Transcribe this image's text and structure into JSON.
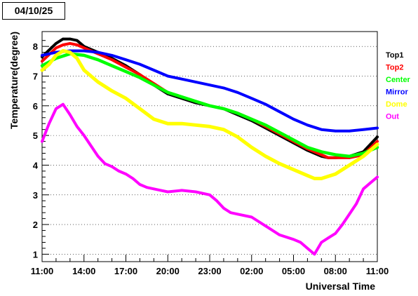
{
  "chart_data": {
    "type": "scatter",
    "title": "04/10/25",
    "xlabel": "Universal Time",
    "ylabel": "Temperature(degree)",
    "x_tick_labels": [
      "11:00",
      "14:00",
      "17:00",
      "20:00",
      "23:00",
      "02:00",
      "05:00",
      "08:00",
      "11:00"
    ],
    "x_ticks_hours": [
      0,
      3,
      6,
      9,
      12,
      15,
      18,
      21,
      24
    ],
    "xlim_hours": [
      0,
      24
    ],
    "y_ticks": [
      1,
      2,
      3,
      4,
      5,
      6,
      7,
      8
    ],
    "ylim": [
      0.75,
      8.5
    ],
    "grid": "horizontal dotted",
    "legend_position": "right",
    "series": [
      {
        "name": "Top1",
        "color": "#000000",
        "x": [
          0,
          1,
          1.5,
          2,
          2.5,
          3,
          4,
          5,
          6,
          7,
          8,
          9,
          10,
          11,
          12,
          13,
          14,
          15,
          16,
          17,
          18,
          19,
          20,
          20.5,
          21,
          22,
          23,
          24
        ],
        "y": [
          7.65,
          8.1,
          8.25,
          8.25,
          8.2,
          8.0,
          7.8,
          7.6,
          7.35,
          7.05,
          6.7,
          6.4,
          6.25,
          6.1,
          6.0,
          5.9,
          5.7,
          5.5,
          5.25,
          5.0,
          4.75,
          4.5,
          4.3,
          4.25,
          4.25,
          4.3,
          4.45,
          4.95
        ]
      },
      {
        "name": "Top2",
        "color": "#ff0000",
        "x": [
          0,
          1,
          1.5,
          2,
          2.5,
          3,
          4,
          5,
          6,
          7,
          8,
          9,
          10,
          11,
          12,
          13,
          14,
          15,
          16,
          17,
          18,
          19,
          20,
          20.5,
          21,
          22,
          23,
          24
        ],
        "y": [
          7.5,
          7.95,
          8.05,
          8.1,
          8.05,
          7.95,
          7.75,
          7.55,
          7.3,
          7.05,
          6.75,
          6.45,
          6.3,
          6.15,
          6.0,
          5.9,
          5.75,
          5.55,
          5.3,
          5.05,
          4.8,
          4.55,
          4.35,
          4.25,
          4.25,
          4.25,
          4.35,
          4.8
        ]
      },
      {
        "name": "Center",
        "color": "#00ff00",
        "x": [
          0,
          1,
          2,
          3,
          4,
          5,
          6,
          7,
          8,
          9,
          10,
          11,
          12,
          13,
          14,
          15,
          16,
          17,
          18,
          19,
          20,
          21,
          22,
          23,
          24
        ],
        "y": [
          7.35,
          7.6,
          7.75,
          7.7,
          7.55,
          7.35,
          7.15,
          6.95,
          6.7,
          6.45,
          6.3,
          6.15,
          6.0,
          5.9,
          5.75,
          5.55,
          5.35,
          5.1,
          4.85,
          4.6,
          4.45,
          4.35,
          4.3,
          4.4,
          4.6
        ]
      },
      {
        "name": "Mirror",
        "color": "#0000ff",
        "x": [
          0,
          1,
          2,
          3,
          4,
          5,
          6,
          7,
          8,
          9,
          10,
          11,
          12,
          13,
          14,
          15,
          16,
          17,
          18,
          19,
          20,
          21,
          22,
          23,
          24
        ],
        "y": [
          7.7,
          7.8,
          7.85,
          7.85,
          7.8,
          7.7,
          7.55,
          7.4,
          7.2,
          7.0,
          6.9,
          6.8,
          6.7,
          6.6,
          6.45,
          6.25,
          6.05,
          5.8,
          5.55,
          5.35,
          5.2,
          5.15,
          5.15,
          5.2,
          5.25
        ]
      },
      {
        "name": "Dome",
        "color": "#ffff00",
        "x": [
          0,
          0.5,
          1,
          1.5,
          2,
          2.5,
          3,
          4,
          5,
          6,
          7,
          8,
          9,
          10,
          11,
          12,
          13,
          14,
          15,
          16,
          17,
          18,
          19,
          19.5,
          20,
          21,
          22,
          23,
          24
        ],
        "y": [
          7.2,
          7.4,
          7.7,
          7.85,
          7.8,
          7.6,
          7.2,
          6.8,
          6.5,
          6.25,
          5.9,
          5.55,
          5.4,
          5.4,
          5.35,
          5.3,
          5.2,
          4.95,
          4.6,
          4.3,
          4.05,
          3.85,
          3.65,
          3.55,
          3.55,
          3.7,
          4.0,
          4.3,
          4.7
        ]
      },
      {
        "name": "Out",
        "color": "#ff00ff",
        "x": [
          0,
          0.5,
          1,
          1.5,
          2,
          2.5,
          3,
          3.5,
          4,
          4.5,
          5,
          5.5,
          6,
          6.5,
          7,
          7.5,
          8,
          8.5,
          9,
          10,
          11,
          12,
          12.5,
          13,
          13.5,
          14,
          15,
          16,
          17,
          18,
          18.5,
          19,
          19.5,
          20,
          20.5,
          21,
          21.5,
          22,
          22.5,
          23,
          23.5,
          24
        ],
        "y": [
          4.8,
          5.4,
          5.9,
          6.05,
          5.7,
          5.3,
          5.0,
          4.65,
          4.3,
          4.05,
          3.95,
          3.8,
          3.7,
          3.55,
          3.35,
          3.25,
          3.2,
          3.15,
          3.1,
          3.15,
          3.1,
          3.0,
          2.8,
          2.55,
          2.4,
          2.35,
          2.25,
          1.95,
          1.65,
          1.5,
          1.4,
          1.2,
          1.0,
          1.4,
          1.55,
          1.7,
          2.0,
          2.35,
          2.7,
          3.2,
          3.4,
          3.6
        ]
      }
    ]
  }
}
